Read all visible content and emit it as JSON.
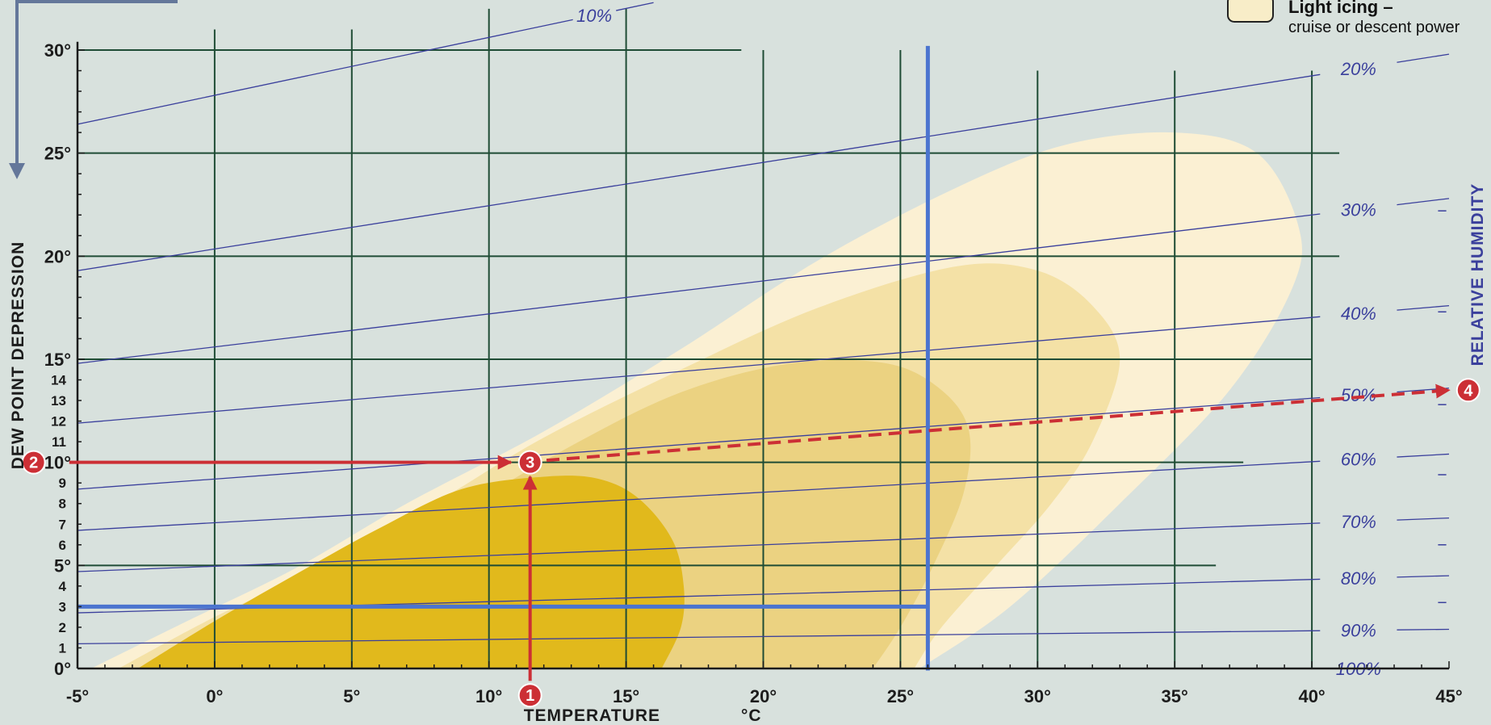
{
  "chart_data": {
    "type": "line",
    "title": "",
    "xlabel": "TEMPERATURE",
    "xlabel_unit": "°C",
    "ylabel": "DEW POINT DEPRESSION",
    "right_label": "RELATIVE HUMIDITY",
    "xlim": [
      -5,
      45
    ],
    "ylim": [
      0,
      30
    ],
    "x_ticks": [
      -5,
      0,
      5,
      10,
      15,
      20,
      25,
      30,
      35,
      40,
      45
    ],
    "x_tick_labels": [
      "-5°",
      "0°",
      "5°",
      "10°",
      "15°",
      "20°",
      "25°",
      "30°",
      "35°",
      "40°",
      "45°"
    ],
    "y_major_ticks": [
      0,
      5,
      10,
      15,
      20,
      25,
      30
    ],
    "y_major_labels": [
      "0°",
      "5°",
      "10°",
      "15°",
      "20°",
      "25°",
      "30°"
    ],
    "y_minor_ticks": [
      1,
      2,
      3,
      4,
      6,
      7,
      8,
      9,
      11,
      12,
      13,
      14
    ],
    "y_minor_labels": [
      "1",
      "2",
      "3",
      "4",
      "6",
      "7",
      "8",
      "9",
      "11",
      "12",
      "13",
      "14"
    ],
    "grid": true,
    "gridlines": {
      "vertical": [
        {
          "x": 0,
          "ymax": 31
        },
        {
          "x": 5,
          "ymax": 31
        },
        {
          "x": 10,
          "ymax": 32
        },
        {
          "x": 15,
          "ymax": 32
        },
        {
          "x": 20,
          "ymax": 30
        },
        {
          "x": 25,
          "ymax": 30
        },
        {
          "x": 30,
          "ymax": 29
        },
        {
          "x": 35,
          "ymax": 29
        },
        {
          "x": 40,
          "ymax": 29
        }
      ],
      "horizontal": [
        {
          "y": 30,
          "xmax": 19.2
        },
        {
          "y": 25,
          "xmax": 41
        },
        {
          "y": 20,
          "xmax": 41
        },
        {
          "y": 15,
          "xmax": 40
        },
        {
          "y": 10,
          "xmax": 37.5
        },
        {
          "y": 5,
          "xmax": 36.5
        }
      ]
    },
    "series": [
      {
        "name": "10%",
        "x": [
          -5,
          16
        ],
        "y": [
          26.4,
          32.3
        ]
      },
      {
        "name": "20%",
        "x": [
          -5,
          45
        ],
        "y": [
          19.3,
          29.8
        ]
      },
      {
        "name": "30%",
        "x": [
          -5,
          45
        ],
        "y": [
          14.8,
          22.8
        ]
      },
      {
        "name": "40%",
        "x": [
          -5,
          45
        ],
        "y": [
          11.9,
          17.6
        ]
      },
      {
        "name": "50%",
        "x": [
          -5,
          45
        ],
        "y": [
          8.7,
          13.6
        ]
      },
      {
        "name": "60%",
        "x": [
          -5,
          45
        ],
        "y": [
          6.7,
          10.4
        ]
      },
      {
        "name": "70%",
        "x": [
          -5,
          45
        ],
        "y": [
          4.7,
          7.3
        ]
      },
      {
        "name": "80%",
        "x": [
          -5,
          45
        ],
        "y": [
          2.7,
          4.5
        ]
      },
      {
        "name": "90%",
        "x": [
          -5,
          45
        ],
        "y": [
          1.2,
          1.9
        ]
      },
      {
        "name": "100%",
        "x": [
          -5,
          45
        ],
        "y": [
          0,
          0
        ]
      }
    ],
    "icing_zones": [
      {
        "level": 1,
        "color": "#fbf0d3",
        "outline": [
          [
            -4.5,
            0
          ],
          [
            -1,
            2.3
          ],
          [
            3,
            4.9
          ],
          [
            7,
            8
          ],
          [
            12,
            11.5
          ],
          [
            17,
            15.5
          ],
          [
            22,
            19.8
          ],
          [
            27,
            23.3
          ],
          [
            31,
            25.4
          ],
          [
            35,
            26
          ],
          [
            38,
            25
          ],
          [
            39.5,
            21.5
          ],
          [
            39.3,
            18.5
          ],
          [
            37,
            13.5
          ],
          [
            33,
            8
          ],
          [
            29,
            3
          ],
          [
            25.7,
            0
          ]
        ]
      },
      {
        "level": 2,
        "color": "#f4e1a6",
        "outline": [
          [
            -3.5,
            0
          ],
          [
            0,
            2.5
          ],
          [
            4,
            5
          ],
          [
            8,
            8
          ],
          [
            12,
            11.2
          ],
          [
            17,
            14.5
          ],
          [
            22,
            17.5
          ],
          [
            27,
            19.5
          ],
          [
            30,
            19.3
          ],
          [
            32,
            17.6
          ],
          [
            33,
            15
          ],
          [
            32,
            11
          ],
          [
            30.5,
            8
          ],
          [
            28.5,
            5
          ],
          [
            26.5,
            2
          ],
          [
            25.5,
            0
          ]
        ]
      },
      {
        "level": 3,
        "color": "#ebd281",
        "outline": [
          [
            -2,
            0
          ],
          [
            1,
            2.2
          ],
          [
            5,
            4.7
          ],
          [
            9,
            7.7
          ],
          [
            13,
            10.8
          ],
          [
            17,
            13.4
          ],
          [
            21,
            14.8
          ],
          [
            24.5,
            14.8
          ],
          [
            26.5,
            13.5
          ],
          [
            27.5,
            11.5
          ],
          [
            27.3,
            8.5
          ],
          [
            26.2,
            5
          ],
          [
            25,
            2
          ],
          [
            24,
            0
          ]
        ]
      },
      {
        "level": 4,
        "color": "#e1b91c",
        "outline": [
          [
            -2.8,
            0
          ],
          [
            0,
            2.3
          ],
          [
            3,
            4.6
          ],
          [
            6,
            6.8
          ],
          [
            9,
            8.7
          ],
          [
            12,
            9.3
          ],
          [
            14,
            9.2
          ],
          [
            15.5,
            8.2
          ],
          [
            16.7,
            6.2
          ],
          [
            17.1,
            4
          ],
          [
            17,
            2
          ],
          [
            16.3,
            0
          ]
        ]
      }
    ],
    "example_lines": {
      "temperature_c": 26,
      "dew_point_depression": 3
    },
    "markers": [
      {
        "label": "1",
        "x": 11.5,
        "y": -1.3
      },
      {
        "label": "2",
        "x": -6.6,
        "y": 10
      },
      {
        "label": "3",
        "x": 11.5,
        "y": 10
      },
      {
        "label": "4",
        "x": 45.7,
        "y": 13.5
      }
    ],
    "arrows": [
      {
        "style": "solid",
        "from": [
          11.5,
          -0.6
        ],
        "to": [
          11.5,
          9.3
        ]
      },
      {
        "style": "solid",
        "from": [
          -5.3,
          10
        ],
        "to": [
          10.8,
          10
        ]
      },
      {
        "style": "dashed",
        "from": [
          12.1,
          10.1
        ],
        "to": [
          45,
          13.5
        ]
      }
    ]
  },
  "legend": {
    "title": "Light icing –",
    "subtitle": "cruise or descent power",
    "swatch_color": "#f8edc8"
  },
  "colors": {
    "background": "#d8e1dd",
    "grid": "#1f4c35",
    "rh_line": "#3a3f9c",
    "example_line": "#4b74cf",
    "marker": "#cc2f35",
    "guide_arrow": "#64779a"
  }
}
